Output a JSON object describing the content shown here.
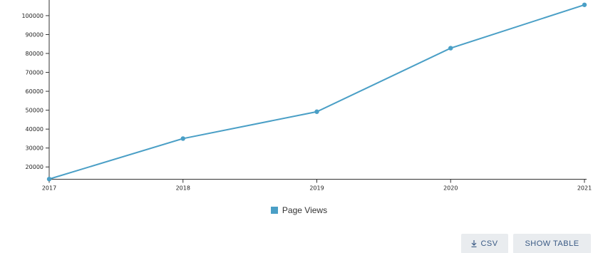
{
  "chart_data": {
    "type": "line",
    "x": [
      2017,
      2018,
      2019,
      2020,
      2021
    ],
    "x_tick_labels": [
      "2017",
      "2018",
      "2019",
      "2020",
      "2021"
    ],
    "y_tick_labels": [
      "20000",
      "30000",
      "40000",
      "50000",
      "60000",
      "70000",
      "80000",
      "90000",
      "100000"
    ],
    "y_ticks": [
      20000,
      30000,
      40000,
      50000,
      60000,
      70000,
      80000,
      90000,
      100000
    ],
    "ylim": [
      13500,
      106000
    ],
    "series": [
      {
        "name": "Page Views",
        "values": [
          13600,
          35000,
          49200,
          82800,
          105700
        ],
        "color": "#4a9fc6"
      }
    ],
    "grid": false,
    "legend_position": "bottom-center"
  },
  "legend": {
    "label": "Page Views"
  },
  "toolbar": {
    "csv_label": "CSV",
    "show_table_label": "SHOW TABLE",
    "csv_icon": "download-icon",
    "button_bg": "#e9ecef",
    "button_text": "#3a5a85"
  }
}
